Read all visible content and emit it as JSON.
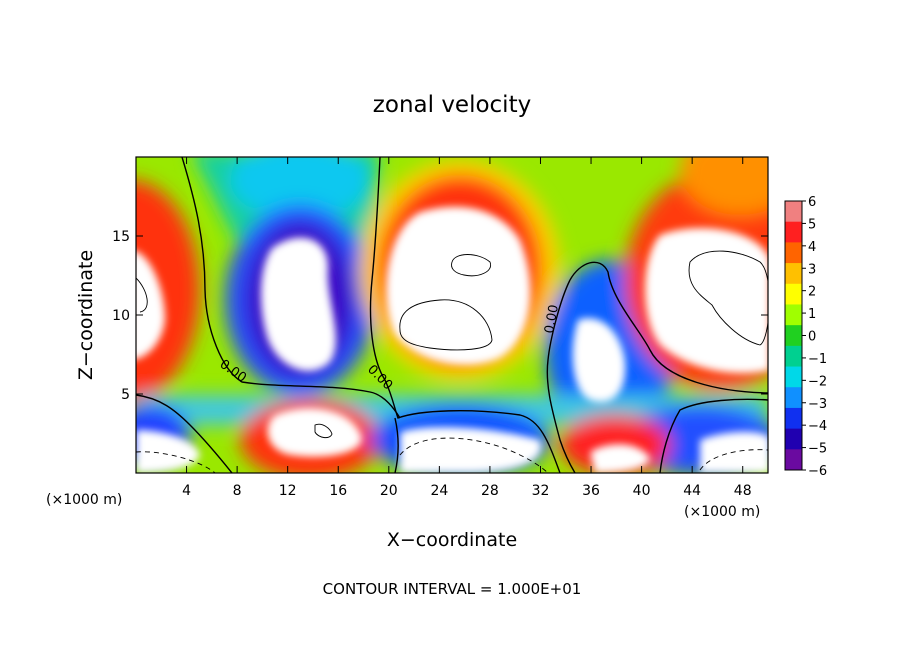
{
  "chart_data": {
    "type": "heatmap",
    "title": "zonal velocity",
    "xlabel": "X−coordinate",
    "ylabel": "Z−coordinate",
    "x_unit": "(×1000 m)",
    "x_unit_right": "(×1000 m)",
    "footnote": "CONTOUR INTERVAL = 1.000E+01",
    "xlim": [
      0,
      50
    ],
    "ylim": [
      0,
      20
    ],
    "x_ticks": [
      4,
      8,
      12,
      16,
      20,
      24,
      28,
      32,
      36,
      40,
      44,
      48
    ],
    "x_tick_labels": [
      "4",
      "8",
      "12",
      "16",
      "20",
      "24",
      "28",
      "32",
      "36",
      "40",
      "44",
      "48"
    ],
    "y_ticks": [
      5,
      10,
      15
    ],
    "y_tick_labels": [
      "5",
      "10",
      "15"
    ],
    "colorbar": {
      "min": -6,
      "max": 6,
      "ticks": [
        "6",
        "5",
        "4",
        "3",
        "2",
        "1",
        "0",
        "−1",
        "−2",
        "−3",
        "−4",
        "−5",
        "−6"
      ],
      "colors": [
        "#f08080",
        "#ff2020",
        "#ff6400",
        "#ffc000",
        "#ffff00",
        "#a0ff00",
        "#20d020",
        "#00d090",
        "#00d8e8",
        "#1090ff",
        "#1030f0",
        "#2000b0",
        "#6a0aa0"
      ]
    },
    "zero_contour_labels": [
      "0.00",
      "0.00",
      "0.00"
    ]
  }
}
